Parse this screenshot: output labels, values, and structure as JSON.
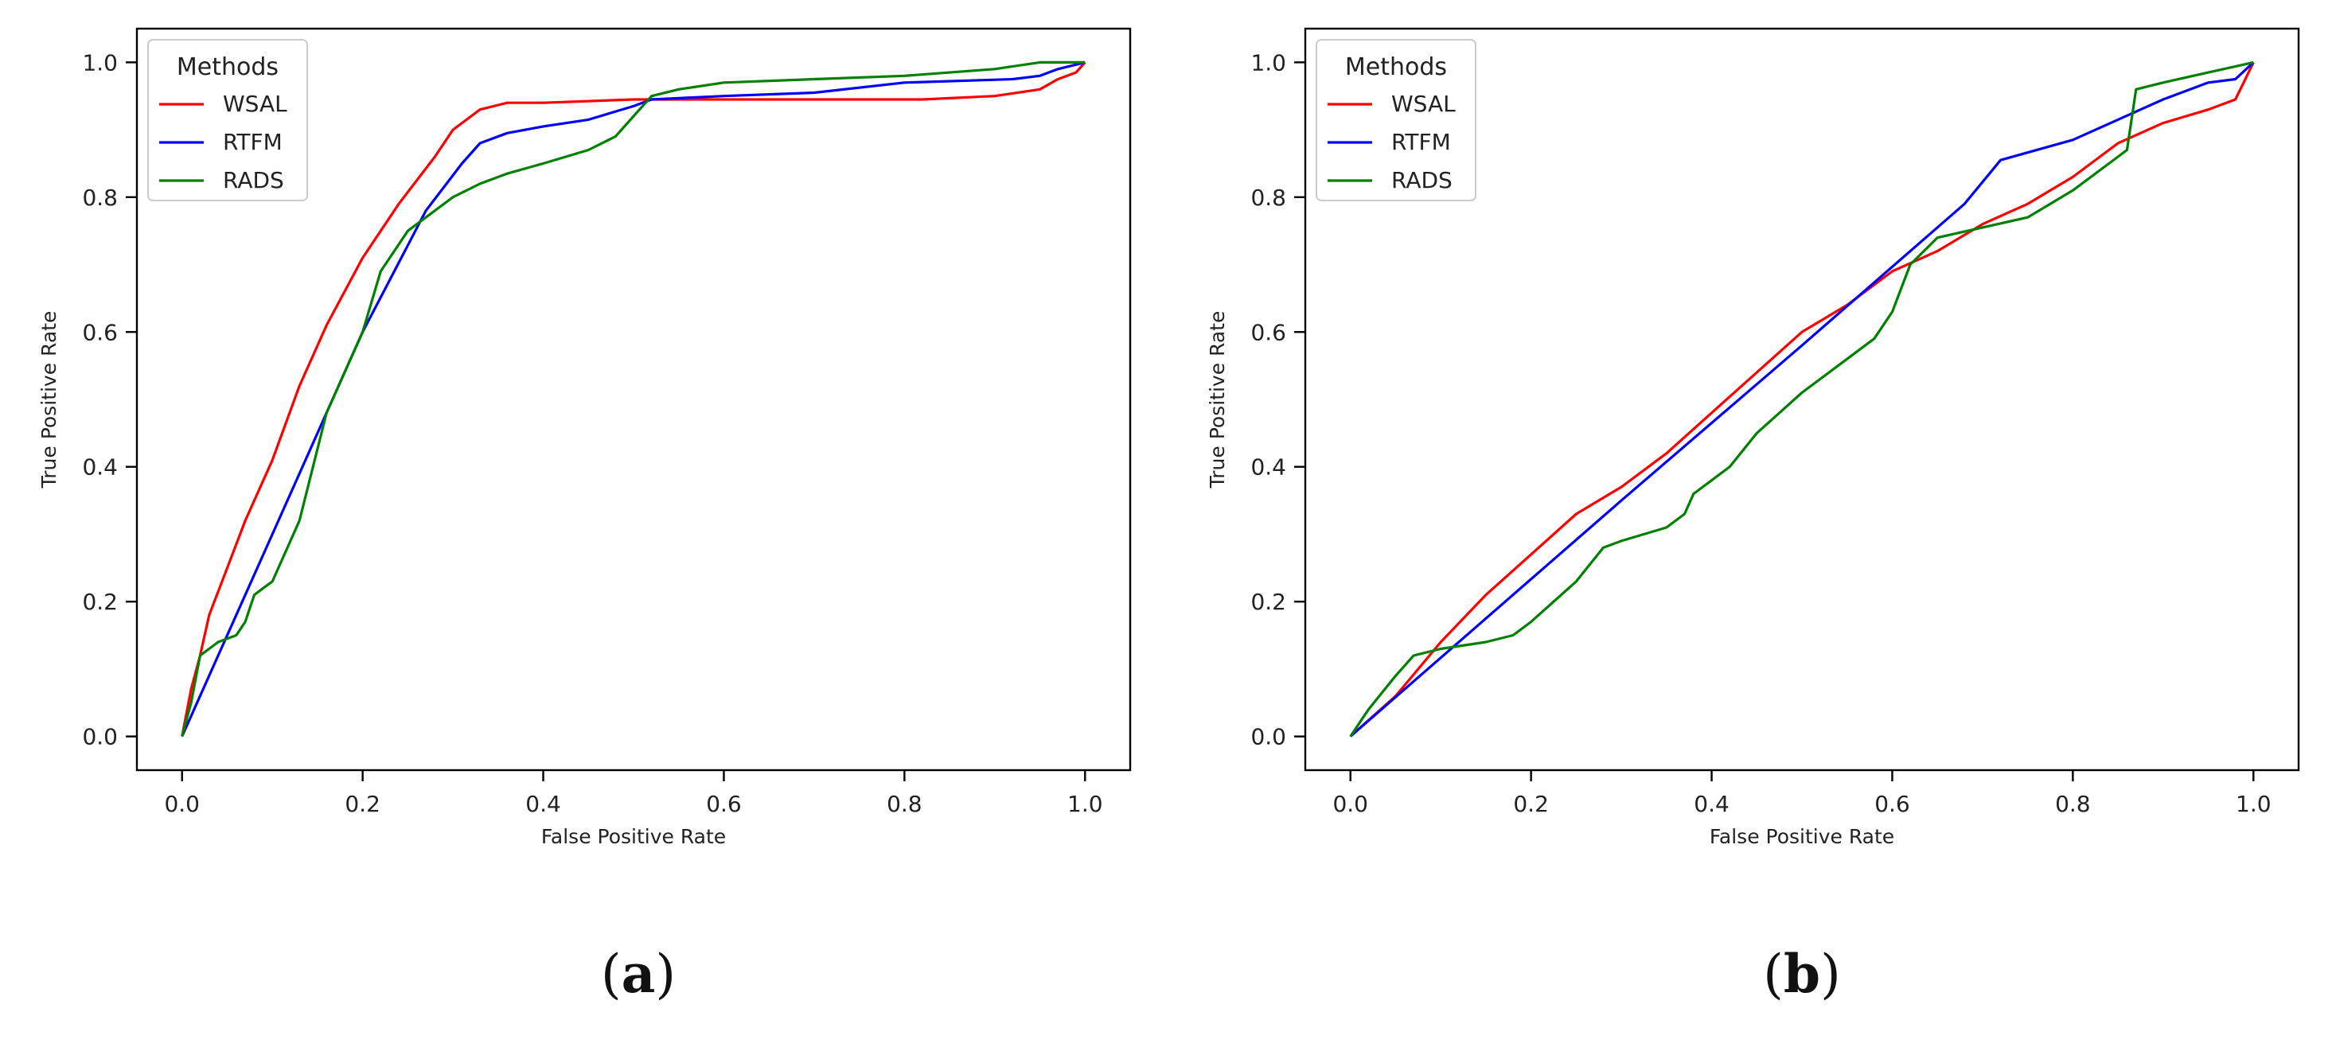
{
  "chart_data": [
    {
      "type": "line",
      "panel_label": "a",
      "title": "",
      "xlabel": "False Positive Rate",
      "ylabel": "True Positive Rate",
      "xlim": [
        -0.05,
        1.05
      ],
      "ylim": [
        -0.05,
        1.05
      ],
      "xticks": [
        "0.0",
        "0.2",
        "0.4",
        "0.6",
        "0.8",
        "1.0"
      ],
      "yticks": [
        "0.0",
        "0.2",
        "0.4",
        "0.6",
        "0.8",
        "1.0"
      ],
      "legend_title": "Methods",
      "legend_location": "top-left",
      "series": [
        {
          "name": "WSAL",
          "color": "#ff0000",
          "x": [
            0.0,
            0.01,
            0.02,
            0.03,
            0.05,
            0.07,
            0.1,
            0.13,
            0.16,
            0.2,
            0.24,
            0.28,
            0.3,
            0.33,
            0.36,
            0.4,
            0.5,
            0.6,
            0.7,
            0.82,
            0.9,
            0.95,
            0.97,
            0.99,
            1.0
          ],
          "y": [
            0.0,
            0.07,
            0.12,
            0.18,
            0.25,
            0.32,
            0.41,
            0.52,
            0.61,
            0.71,
            0.79,
            0.86,
            0.9,
            0.93,
            0.94,
            0.94,
            0.945,
            0.945,
            0.945,
            0.945,
            0.95,
            0.96,
            0.975,
            0.985,
            1.0
          ]
        },
        {
          "name": "RTFM",
          "color": "#0000ff",
          "x": [
            0.0,
            0.1,
            0.2,
            0.27,
            0.31,
            0.33,
            0.36,
            0.4,
            0.45,
            0.5,
            0.52,
            0.6,
            0.7,
            0.8,
            0.92,
            0.95,
            0.97,
            1.0
          ],
          "y": [
            0.0,
            0.3,
            0.6,
            0.78,
            0.85,
            0.88,
            0.895,
            0.905,
            0.915,
            0.935,
            0.945,
            0.95,
            0.955,
            0.97,
            0.975,
            0.98,
            0.99,
            1.0
          ]
        },
        {
          "name": "RADS",
          "color": "#008000",
          "x": [
            0.0,
            0.01,
            0.02,
            0.04,
            0.06,
            0.07,
            0.08,
            0.09,
            0.1,
            0.12,
            0.13,
            0.16,
            0.2,
            0.22,
            0.25,
            0.27,
            0.3,
            0.33,
            0.36,
            0.4,
            0.45,
            0.48,
            0.5,
            0.52,
            0.55,
            0.6,
            0.7,
            0.8,
            0.9,
            0.95,
            1.0
          ],
          "y": [
            0.0,
            0.05,
            0.12,
            0.14,
            0.15,
            0.17,
            0.21,
            0.22,
            0.23,
            0.29,
            0.32,
            0.48,
            0.6,
            0.69,
            0.75,
            0.77,
            0.8,
            0.82,
            0.835,
            0.85,
            0.87,
            0.89,
            0.92,
            0.95,
            0.96,
            0.97,
            0.975,
            0.98,
            0.99,
            1.0,
            1.0
          ]
        }
      ]
    },
    {
      "type": "line",
      "panel_label": "b",
      "title": "",
      "xlabel": "False Positive Rate",
      "ylabel": "True Positive Rate",
      "xlim": [
        -0.05,
        1.05
      ],
      "ylim": [
        -0.05,
        1.05
      ],
      "xticks": [
        "0.0",
        "0.2",
        "0.4",
        "0.6",
        "0.8",
        "1.0"
      ],
      "yticks": [
        "0.0",
        "0.2",
        "0.4",
        "0.6",
        "0.8",
        "1.0"
      ],
      "legend_title": "Methods",
      "legend_location": "top-left",
      "series": [
        {
          "name": "WSAL",
          "color": "#ff0000",
          "x": [
            0.0,
            0.05,
            0.1,
            0.15,
            0.2,
            0.25,
            0.3,
            0.35,
            0.4,
            0.45,
            0.5,
            0.55,
            0.6,
            0.65,
            0.7,
            0.75,
            0.8,
            0.85,
            0.9,
            0.95,
            0.98,
            1.0
          ],
          "y": [
            0.0,
            0.06,
            0.14,
            0.21,
            0.27,
            0.33,
            0.37,
            0.42,
            0.48,
            0.54,
            0.6,
            0.64,
            0.69,
            0.72,
            0.76,
            0.79,
            0.83,
            0.88,
            0.91,
            0.93,
            0.945,
            1.0
          ]
        },
        {
          "name": "RTFM",
          "color": "#0000ff",
          "x": [
            0.0,
            0.3,
            0.5,
            0.68,
            0.72,
            0.8,
            0.85,
            0.9,
            0.95,
            0.98,
            1.0
          ],
          "y": [
            0.0,
            0.35,
            0.58,
            0.79,
            0.855,
            0.885,
            0.915,
            0.945,
            0.97,
            0.975,
            1.0
          ]
        },
        {
          "name": "RADS",
          "color": "#008000",
          "x": [
            0.0,
            0.02,
            0.05,
            0.07,
            0.1,
            0.15,
            0.18,
            0.2,
            0.25,
            0.28,
            0.3,
            0.35,
            0.37,
            0.38,
            0.42,
            0.45,
            0.5,
            0.55,
            0.58,
            0.6,
            0.62,
            0.65,
            0.7,
            0.75,
            0.8,
            0.85,
            0.86,
            0.87,
            0.9,
            0.95,
            1.0
          ],
          "y": [
            0.0,
            0.04,
            0.09,
            0.12,
            0.13,
            0.14,
            0.15,
            0.17,
            0.23,
            0.28,
            0.29,
            0.31,
            0.33,
            0.36,
            0.4,
            0.45,
            0.51,
            0.56,
            0.59,
            0.63,
            0.7,
            0.74,
            0.755,
            0.77,
            0.81,
            0.86,
            0.87,
            0.96,
            0.97,
            0.985,
            1.0
          ]
        }
      ]
    }
  ]
}
